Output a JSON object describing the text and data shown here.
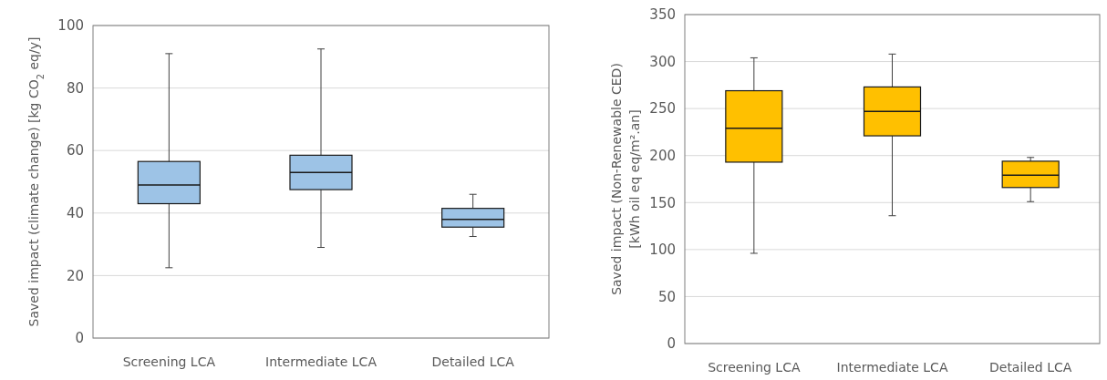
{
  "chart_data": [
    {
      "type": "box",
      "ylabel": "Saved impact (climate change) [kg CO$_{2}$ eq/y]",
      "categories": [
        "Screening LCA",
        "Intermediate LCA",
        "Detailed LCA"
      ],
      "ylim": [
        0,
        100
      ],
      "yticks": [
        0,
        20,
        40,
        60,
        80,
        100
      ],
      "grid": "y",
      "series": [
        {
          "color": "#9dc3e6",
          "boxes": [
            {
              "low": 22.5,
              "q1": 43,
              "median": 49,
              "q3": 56.5,
              "high": 91
            },
            {
              "low": 29,
              "q1": 47.5,
              "median": 53,
              "q3": 58.5,
              "high": 92.5
            },
            {
              "low": 32.5,
              "q1": 35.5,
              "median": 38,
              "q3": 41.5,
              "high": 46
            }
          ]
        }
      ]
    },
    {
      "type": "box",
      "ylabel": "Saved impact (Non-Renewable  CED)\n[kWh oil eq eq/m².an]",
      "categories": [
        "Screening LCA",
        "Intermediate LCA",
        "Detailed LCA"
      ],
      "ylim": [
        0,
        350
      ],
      "yticks": [
        0,
        50,
        100,
        150,
        200,
        250,
        300,
        350
      ],
      "grid": "y",
      "series": [
        {
          "color": "#ffc000",
          "boxes": [
            {
              "low": 96,
              "q1": 193,
              "median": 229,
              "q3": 269,
              "high": 304
            },
            {
              "low": 136,
              "q1": 221,
              "median": 247,
              "q3": 273,
              "high": 308
            },
            {
              "low": 151,
              "q1": 166,
              "median": 179,
              "q3": 194,
              "high": 198
            }
          ]
        }
      ]
    }
  ]
}
